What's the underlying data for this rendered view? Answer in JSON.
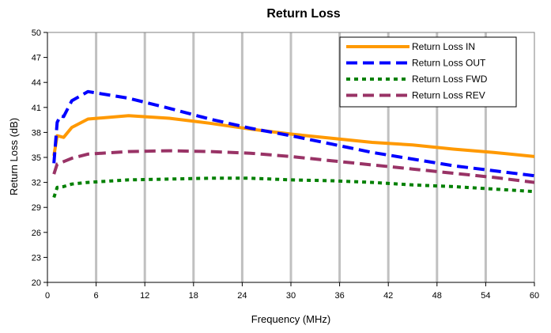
{
  "chart_data": {
    "type": "line",
    "title": "Return Loss",
    "xlabel": "Frequency (MHz)",
    "ylabel": "Return Loss (dB)",
    "xlim": [
      0,
      60
    ],
    "ylim": [
      20,
      50
    ],
    "xticks": [
      0,
      6,
      12,
      18,
      24,
      30,
      36,
      42,
      48,
      54,
      60
    ],
    "yticks": [
      20,
      23,
      26,
      29,
      32,
      35,
      38,
      41,
      44,
      47,
      50
    ],
    "grid": "vertical",
    "legend_position": "top-right",
    "series": [
      {
        "name": "Return Loss IN",
        "color": "#FF9900",
        "style": "solid",
        "x": [
          0.8,
          1.2,
          2,
          3,
          5,
          10,
          15,
          20,
          25,
          30,
          35,
          40,
          45,
          50,
          55,
          60
        ],
        "y": [
          35.2,
          37.6,
          37.4,
          38.6,
          39.6,
          40.0,
          39.7,
          39.1,
          38.4,
          37.8,
          37.3,
          36.8,
          36.5,
          36.0,
          35.6,
          35.1
        ]
      },
      {
        "name": "Return Loss OUT",
        "color": "#0000FF",
        "style": "dash",
        "x": [
          0.8,
          1.2,
          1.6,
          2,
          3,
          5,
          10,
          15,
          20,
          25,
          30,
          35,
          40,
          45,
          50,
          55,
          60
        ],
        "y": [
          34.3,
          39.2,
          40.0,
          39.9,
          41.8,
          42.9,
          42.1,
          40.9,
          39.6,
          38.5,
          37.6,
          36.6,
          35.6,
          34.8,
          34.0,
          33.4,
          32.8
        ]
      },
      {
        "name": "Return Loss FWD",
        "color": "#008000",
        "style": "dot",
        "x": [
          0.8,
          1.2,
          2,
          3,
          5,
          10,
          15,
          20,
          25,
          30,
          35,
          40,
          45,
          50,
          55,
          60
        ],
        "y": [
          30.2,
          31.4,
          31.5,
          31.8,
          32.0,
          32.3,
          32.4,
          32.5,
          32.5,
          32.3,
          32.2,
          32.0,
          31.7,
          31.5,
          31.2,
          30.9
        ]
      },
      {
        "name": "Return Loss REV",
        "color": "#993366",
        "style": "dash",
        "x": [
          0.8,
          1.2,
          2,
          3,
          5,
          10,
          15,
          20,
          25,
          30,
          35,
          40,
          45,
          50,
          55,
          60
        ],
        "y": [
          33.0,
          34.2,
          34.5,
          34.9,
          35.4,
          35.7,
          35.8,
          35.7,
          35.5,
          35.1,
          34.6,
          34.1,
          33.6,
          33.1,
          32.6,
          32.0
        ]
      }
    ]
  }
}
